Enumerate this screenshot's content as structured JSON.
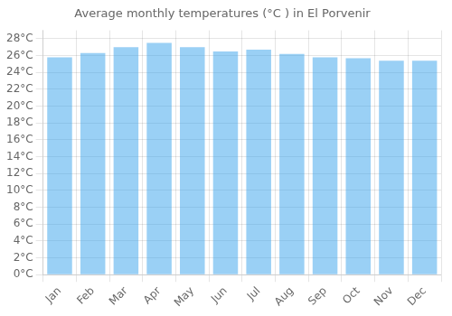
{
  "chart_data": {
    "type": "bar",
    "title": "Average monthly temperatures (°C ) in El Porvenir",
    "categories": [
      "Jan",
      "Feb",
      "Mar",
      "Apr",
      "May",
      "Jun",
      "Jul",
      "Aug",
      "Sep",
      "Oct",
      "Nov",
      "Dec"
    ],
    "values": [
      25.8,
      26.3,
      27.0,
      27.5,
      27.0,
      26.5,
      26.7,
      26.2,
      25.8,
      25.7,
      25.4,
      25.4
    ],
    "ylim": [
      0,
      29
    ],
    "yticks": [
      {
        "value": 0,
        "label": "0°C"
      },
      {
        "value": 2,
        "label": "2°C"
      },
      {
        "value": 4,
        "label": "4°C"
      },
      {
        "value": 6,
        "label": "6°C"
      },
      {
        "value": 8,
        "label": "8°C"
      },
      {
        "value": 10,
        "label": "10°C"
      },
      {
        "value": 12,
        "label": "12°C"
      },
      {
        "value": 14,
        "label": "14°C"
      },
      {
        "value": 16,
        "label": "16°C"
      },
      {
        "value": 18,
        "label": "18°C"
      },
      {
        "value": 20,
        "label": "20°C"
      },
      {
        "value": 22,
        "label": "22°C"
      },
      {
        "value": 24,
        "label": "24°C"
      },
      {
        "value": 26,
        "label": "26°C"
      },
      {
        "value": 28,
        "label": "28°C"
      }
    ],
    "grid": true
  }
}
